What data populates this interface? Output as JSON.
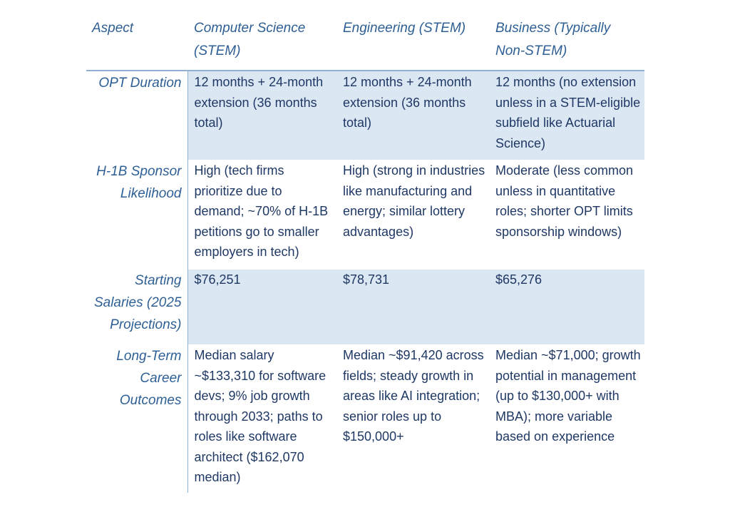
{
  "headers": [
    "Aspect",
    "Computer Science (STEM)",
    "Engineering (STEM)",
    "Business (Typically Non-STEM)"
  ],
  "rows": [
    {
      "aspect": "OPT Duration",
      "cs": "12 months + 24-month extension (36 months total)",
      "eng": "12 months + 24-month extension (36 months total)",
      "bus": "12 months (no extension unless in a STEM-eligible subfield like Actuarial Science)"
    },
    {
      "aspect": "H-1B Sponsor Likelihood",
      "cs": "High (tech firms prioritize due to demand; ~70% of H-1B petitions go to smaller employers in tech)",
      "eng": "High (strong in industries like manufacturing and energy; similar lottery advantages)",
      "bus": "Moderate (less common unless in quantitative roles; shorter OPT limits sponsorship windows)"
    },
    {
      "aspect": "Starting Salaries (2025 Projections)",
      "cs": "$76,251",
      "eng": "$78,731",
      "bus": "$65,276"
    },
    {
      "aspect": "Long-Term Career Outcomes",
      "cs": "Median salary ~$133,310 for software devs; 9% job growth through 2033; paths to roles like software architect ($162,070 median)",
      "eng": "Median ~$91,420 across fields; steady growth in areas like AI integration; senior roles up to $150,000+",
      "bus": "Median ~$71,000; growth potential in management (up to $130,000+ with MBA); more variable based on experience"
    }
  ],
  "colors": {
    "header_text": "#2e5f94",
    "body_text": "#1f3864",
    "row_shade": "#dce7f4",
    "rule": "#8fb0d3"
  }
}
